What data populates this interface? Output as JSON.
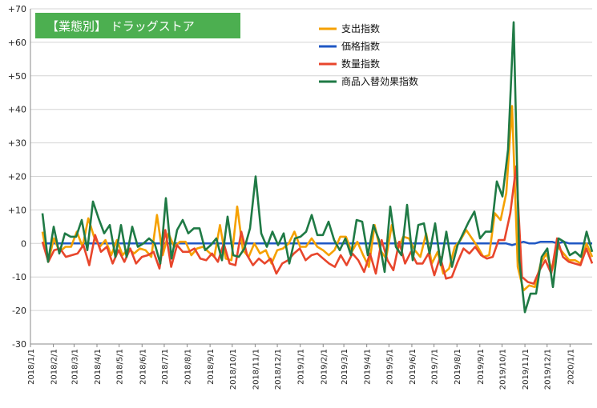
{
  "chart_data": {
    "type": "line",
    "title": "【業態別】 ドラッグストア",
    "title_box_color": "#4caf50",
    "ylim": [
      -30,
      70
    ],
    "ytick_step": 10,
    "y_tick_labels": [
      "-30",
      "-20",
      "-10",
      "0",
      "+10",
      "+20",
      "+30",
      "+40",
      "+50",
      "+60",
      "+70"
    ],
    "x_tick_labels": [
      "2018/1/1",
      "2018/2/1",
      "2018/3/1",
      "2018/4/1",
      "2018/5/1",
      "2018/6/1",
      "2018/7/1",
      "2018/8/1",
      "2018/9/1",
      "2018/10/1",
      "2018/11/1",
      "2018/12/1",
      "2019/1/1",
      "2019/2/1",
      "2019/3/1",
      "2019/4/1",
      "2019/5/1",
      "2019/6/1",
      "2019/7/1",
      "2019/8/1",
      "2019/9/1",
      "2019/10/1",
      "2019/11/1",
      "2019/12/1",
      "2020/1/1"
    ],
    "x_start": "2018-01-01",
    "x_end": "2020-01-31",
    "grid": "horizontal",
    "legend_position": "top-center",
    "series": [
      {
        "name": "支出指数",
        "color": "#f5a100",
        "values": [
          3.5,
          -5.5,
          1.5,
          -2.5,
          -1,
          -1,
          3.5,
          -1,
          7.5,
          2,
          -1,
          1,
          -3.5,
          1,
          -3.5,
          -1.5,
          -3,
          -1.5,
          -2,
          -4,
          8.5,
          -3.5,
          3,
          -1,
          0.5,
          0.5,
          -3.5,
          -1.5,
          -1,
          -2.5,
          -4,
          5.5,
          -4.5,
          -5,
          11,
          -2,
          -4,
          0,
          -3,
          -2,
          -6,
          -2,
          -1.5,
          0,
          3.5,
          -1,
          -1,
          1.5,
          -1,
          -2,
          -3.5,
          -2,
          2,
          2,
          -2.5,
          0.5,
          -3.5,
          -7,
          5.5,
          -2,
          -4.5,
          5.5,
          -2,
          2,
          1.5,
          -2,
          -4,
          3,
          -6,
          -2.5,
          -9,
          -7.5,
          -1,
          1,
          4,
          1.5,
          -1,
          -4,
          -3.5,
          9,
          7,
          15,
          41,
          -7,
          -14,
          -12.5,
          -13,
          -6,
          -3,
          -8,
          -1,
          -3,
          -5,
          -5,
          -6,
          0,
          -4
        ]
      },
      {
        "name": "価格指数",
        "color": "#1f57c4",
        "values": [
          0,
          0,
          0,
          0,
          0,
          0,
          0,
          0,
          0,
          0,
          0,
          0,
          0,
          0,
          0,
          0,
          0,
          0,
          0,
          0,
          0,
          0,
          0,
          0,
          0,
          0,
          0,
          0,
          0,
          0,
          0,
          0,
          0,
          0,
          0,
          0,
          0,
          0,
          0,
          0,
          0,
          0,
          0,
          0,
          0,
          0,
          0,
          0,
          0,
          0,
          0,
          0,
          0,
          0,
          0,
          0,
          0,
          0,
          0,
          0,
          0,
          0,
          0,
          0,
          0,
          0,
          0,
          0,
          0,
          0,
          0,
          0,
          0,
          0,
          0,
          0,
          0,
          0,
          0,
          0,
          0,
          0,
          -0.5,
          0,
          0.5,
          0,
          0,
          0.5,
          0.5,
          0.5,
          0,
          0.5,
          0,
          0,
          0,
          0,
          0
        ]
      },
      {
        "name": "数量指数",
        "color": "#e8462c",
        "values": [
          0.5,
          -5.5,
          -2,
          -1.5,
          -4,
          -3.5,
          -3,
          -0.5,
          -6.5,
          2.5,
          -2.5,
          -1,
          -6,
          -2,
          -5.5,
          -1.5,
          -6,
          -4,
          -3.5,
          -2.5,
          -7.5,
          4,
          -7,
          -0.5,
          -2.5,
          -2.5,
          -1.5,
          -4.5,
          -5,
          -3,
          -5.5,
          0,
          -6,
          -6.5,
          3.5,
          -3.5,
          -6.5,
          -4.5,
          -6,
          -4.5,
          -9,
          -6,
          -5,
          -3,
          -1.5,
          -5,
          -3.5,
          -3,
          -4.5,
          -6,
          -7,
          -3.5,
          -6.5,
          -3,
          -5,
          -8.5,
          -3,
          -9,
          1,
          -5,
          -8,
          0.5,
          -6,
          -2.5,
          -6,
          -6,
          -3,
          -9.5,
          -4,
          -10.5,
          -10,
          -5.5,
          -1.5,
          -3,
          -1,
          -3.5,
          -4.5,
          -4,
          1,
          1,
          9,
          23,
          -10,
          -11.5,
          -12,
          -8,
          -5,
          -9,
          1.5,
          -4,
          -5.5,
          -6,
          -6.5,
          -1.5,
          -6
        ]
      },
      {
        "name": "商品入替効果指数",
        "color": "#1f7a45",
        "values": [
          9,
          -5.5,
          5,
          -3,
          3,
          2,
          2,
          7,
          -2,
          12.5,
          7.5,
          3,
          5.5,
          -4,
          5.5,
          -4,
          5,
          -1,
          0,
          1.5,
          0,
          -6,
          13.5,
          -4.5,
          4,
          7,
          3,
          4.5,
          4.5,
          -2,
          -0.5,
          1.5,
          -5,
          8,
          -3.5,
          -4,
          -1.5,
          4.5,
          20,
          3,
          -1,
          3.5,
          -0.5,
          3,
          -6,
          1.5,
          2,
          3.5,
          8.5,
          2.5,
          2.5,
          6.5,
          1,
          -2,
          1.5,
          -3.5,
          7,
          6.5,
          -3.5,
          5.5,
          1,
          -8.5,
          11,
          -1,
          -3.5,
          11.5,
          -5,
          5.5,
          6,
          -3,
          6,
          -6.5,
          3.5,
          -7,
          -0.5,
          3,
          6.5,
          9.5,
          1.5,
          3.5,
          3.5,
          18.5,
          14,
          28,
          66,
          -5,
          -20.5,
          -15,
          -15,
          -4,
          -1.5,
          -13,
          1.5,
          0.5,
          -3.5,
          -2.5,
          -4,
          3.5,
          -2.5
        ]
      }
    ]
  }
}
